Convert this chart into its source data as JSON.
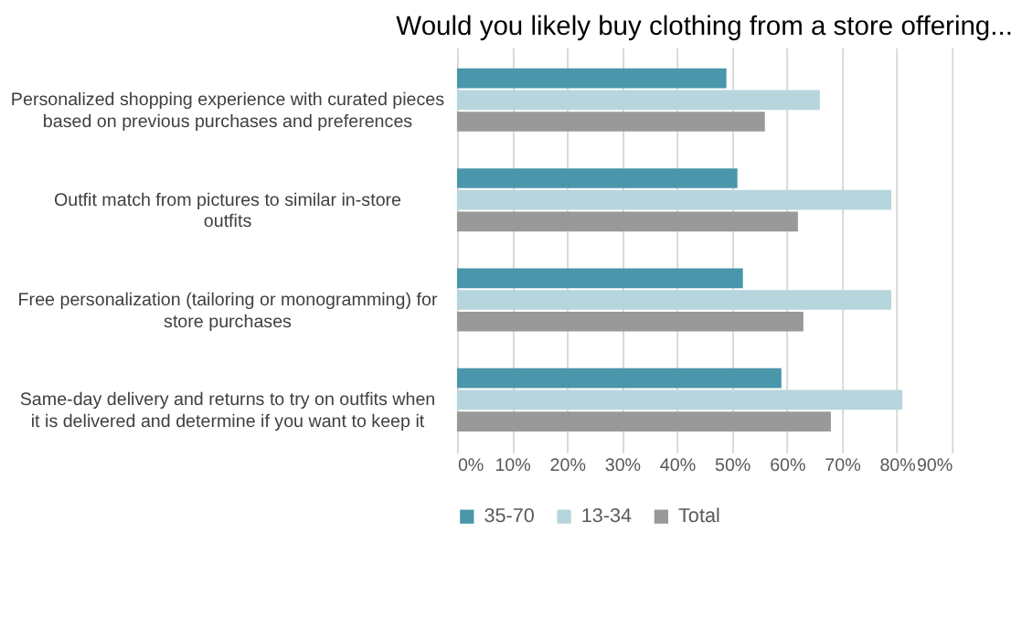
{
  "chart_data": {
    "type": "bar",
    "orientation": "horizontal",
    "title": "Would you likely buy clothing from a store offering...",
    "categories": [
      "Personalized shopping experience with curated pieces based on previous purchases and preferences",
      "Outfit match from pictures to similar in-store outfits",
      "Free personalization (tailoring or monogramming) for store purchases",
      "Same-day delivery and returns to try on outfits when it is delivered and determine if you want to keep it"
    ],
    "series": [
      {
        "name": "35-70",
        "color": "#4a96ab",
        "values": [
          49,
          51,
          52,
          59
        ]
      },
      {
        "name": "13-34",
        "color": "#b7d5dd",
        "values": [
          66,
          79,
          79,
          81
        ]
      },
      {
        "name": "Total",
        "color": "#999999",
        "values": [
          56,
          62,
          63,
          68
        ]
      }
    ],
    "xlim": [
      0,
      90
    ],
    "xticks": [
      {
        "value": 0,
        "label": "0%"
      },
      {
        "value": 10,
        "label": "10%"
      },
      {
        "value": 20,
        "label": "20%"
      },
      {
        "value": 30,
        "label": "30%"
      },
      {
        "value": 40,
        "label": "40%"
      },
      {
        "value": 50,
        "label": "50%"
      },
      {
        "value": 60,
        "label": "60%"
      },
      {
        "value": 70,
        "label": "70%"
      },
      {
        "value": 80,
        "label": "80%"
      },
      {
        "value": 90,
        "label": "90%"
      }
    ],
    "grid": "x",
    "legend": "bottom"
  }
}
